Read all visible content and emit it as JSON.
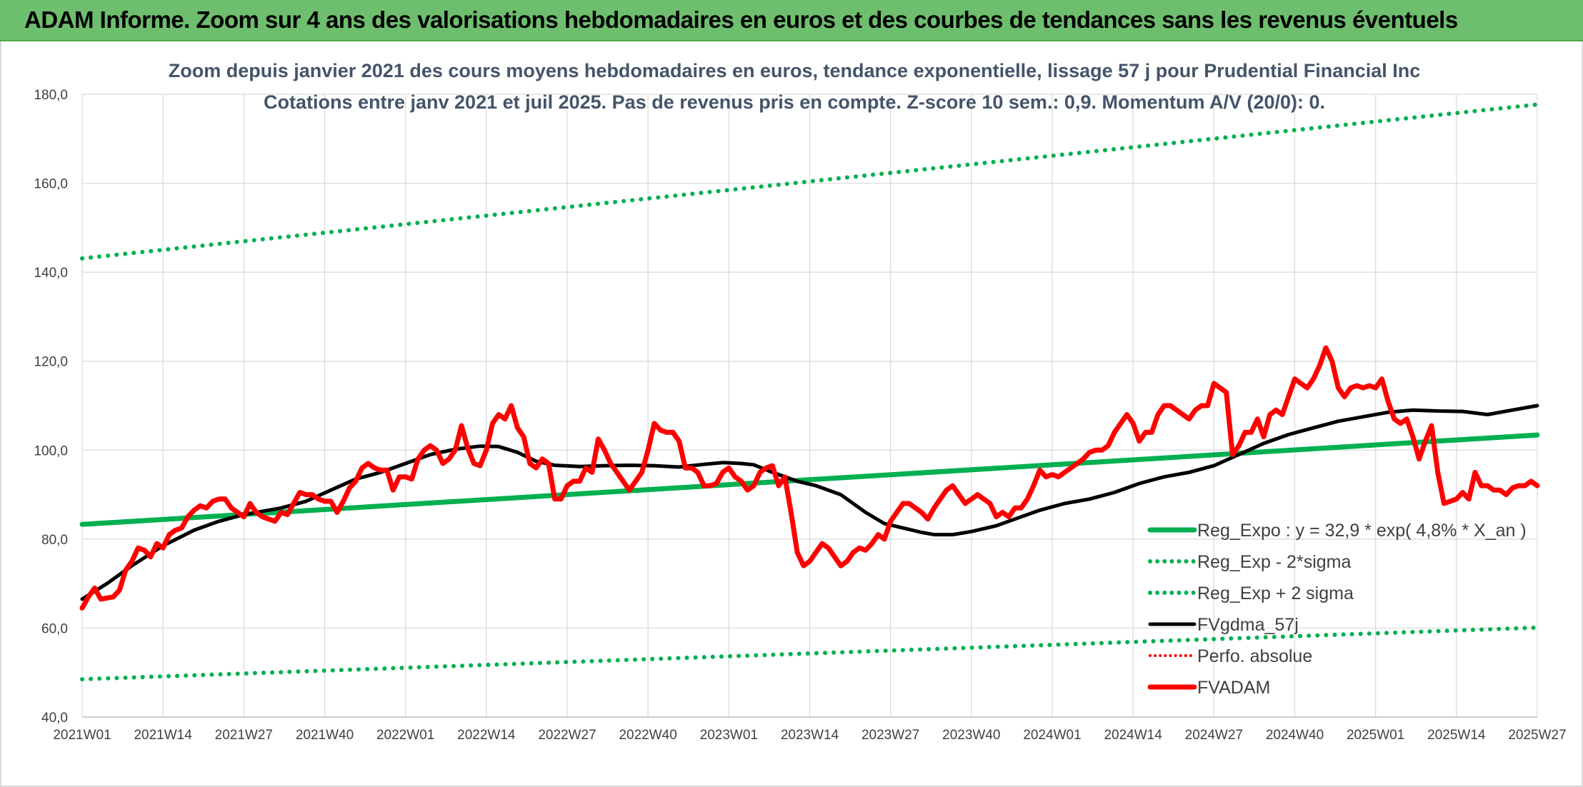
{
  "header": {
    "title": "ADAM Informe. Zoom sur 4 ans des valorisations hebdomadaires en euros et des courbes de tendances sans les revenus éventuels"
  },
  "chart_data": {
    "type": "line",
    "title_line1": "Zoom depuis janvier 2021 des cours moyens hebdomadaires en euros, tendance exponentielle, lissage 57 j pour Prudential Financial Inc",
    "title_line2": "Cotations entre janv 2021 et juil 2025. Pas de revenus pris en compte. Z-score 10 sem.: 0,9. Momentum A/V (20/0): 0.",
    "ylim": [
      40,
      180
    ],
    "y_ticks": [
      "40,0",
      "60,0",
      "80,0",
      "100,0",
      "120,0",
      "140,0",
      "160,0",
      "180,0"
    ],
    "x_ticks": [
      "2021W01",
      "2021W14",
      "2021W27",
      "2021W40",
      "2022W01",
      "2022W14",
      "2022W27",
      "2022W40",
      "2023W01",
      "2023W14",
      "2023W27",
      "2023W40",
      "2024W01",
      "2024W14",
      "2024W27",
      "2024W40",
      "2025W01",
      "2025W14",
      "2025W27"
    ],
    "x_week_range": [
      0,
      234
    ],
    "grid": true,
    "legend_position": "bottom-right",
    "legend": [
      "Reg_Expo : y = 32,9 * exp( 4,8% *  X_an )",
      "Reg_Exp - 2*sigma",
      "Reg_Exp + 2 sigma",
      "FVgdma_57j",
      "Perfo. absolue",
      "FVADAM"
    ],
    "colors": {
      "reg_expo": "#00b050",
      "reg_minus": "#00b050",
      "reg_plus": "#00b050",
      "fvgdma": "#000000",
      "perfo": "#ff0000",
      "fvadam": "#ff0000"
    },
    "series": [
      {
        "name": "Reg_Expo : y = 32,9 * exp( 4,8% *  X_an )",
        "style": "solid",
        "points": [
          [
            0,
            83.3
          ],
          [
            234,
            103.4
          ]
        ]
      },
      {
        "name": "Reg_Exp - 2*sigma",
        "style": "dotted",
        "points": [
          [
            0,
            48.5
          ],
          [
            234,
            60.1
          ]
        ]
      },
      {
        "name": "Reg_Exp + 2 sigma",
        "style": "dotted",
        "points": [
          [
            0,
            143.1
          ],
          [
            234,
            177.7
          ]
        ]
      },
      {
        "name": "FVgdma_57j",
        "style": "solid",
        "points": [
          [
            0,
            66.5
          ],
          [
            4,
            70
          ],
          [
            8,
            74
          ],
          [
            13,
            78.5
          ],
          [
            18,
            82
          ],
          [
            22,
            84
          ],
          [
            26,
            85.5
          ],
          [
            32,
            87
          ],
          [
            36,
            88.5
          ],
          [
            40,
            91
          ],
          [
            44,
            93.5
          ],
          [
            48,
            95
          ],
          [
            52,
            97
          ],
          [
            56,
            99
          ],
          [
            60,
            100.2
          ],
          [
            64,
            100.9
          ],
          [
            67,
            100.8
          ],
          [
            70,
            99.5
          ],
          [
            73,
            97.5
          ],
          [
            76,
            96.6
          ],
          [
            80,
            96.3
          ],
          [
            84,
            96.5
          ],
          [
            88,
            96.6
          ],
          [
            92,
            96.5
          ],
          [
            96,
            96.2
          ],
          [
            100,
            96.8
          ],
          [
            103,
            97.2
          ],
          [
            106,
            97
          ],
          [
            108,
            96.7
          ],
          [
            111,
            95
          ],
          [
            115,
            93
          ],
          [
            118,
            92
          ],
          [
            122,
            90
          ],
          [
            126,
            86
          ],
          [
            129,
            83.5
          ],
          [
            132,
            82.5
          ],
          [
            135,
            81.5
          ],
          [
            137,
            81
          ],
          [
            140,
            81
          ],
          [
            143,
            81.7
          ],
          [
            147,
            83
          ],
          [
            150,
            84.5
          ],
          [
            154,
            86.5
          ],
          [
            158,
            88
          ],
          [
            162,
            89
          ],
          [
            166,
            90.5
          ],
          [
            170,
            92.5
          ],
          [
            174,
            94
          ],
          [
            178,
            95
          ],
          [
            182,
            96.5
          ],
          [
            186,
            99
          ],
          [
            190,
            101.5
          ],
          [
            194,
            103.5
          ],
          [
            198,
            105
          ],
          [
            202,
            106.5
          ],
          [
            206,
            107.5
          ],
          [
            210,
            108.5
          ],
          [
            214,
            109
          ],
          [
            218,
            108.8
          ],
          [
            222,
            108.7
          ],
          [
            226,
            108
          ],
          [
            230,
            109
          ],
          [
            234,
            110
          ]
        ]
      },
      {
        "name": "FVADAM",
        "style": "solid",
        "points": [
          [
            0,
            64.5
          ],
          [
            1,
            67
          ],
          [
            2,
            69
          ],
          [
            3,
            66.5
          ],
          [
            5,
            67
          ],
          [
            6,
            68.5
          ],
          [
            7,
            73
          ],
          [
            8,
            75
          ],
          [
            9,
            78
          ],
          [
            10,
            77.5
          ],
          [
            11,
            76
          ],
          [
            12,
            79
          ],
          [
            13,
            78
          ],
          [
            14,
            81
          ],
          [
            15,
            82
          ],
          [
            16,
            82.5
          ],
          [
            17,
            85
          ],
          [
            18,
            86.5
          ],
          [
            19,
            87.5
          ],
          [
            20,
            87
          ],
          [
            21,
            88.5
          ],
          [
            22,
            89
          ],
          [
            23,
            89
          ],
          [
            24,
            87
          ],
          [
            25,
            86
          ],
          [
            26,
            85
          ],
          [
            27,
            88
          ],
          [
            28,
            86
          ],
          [
            29,
            85
          ],
          [
            30,
            84.5
          ],
          [
            31,
            84
          ],
          [
            32,
            86
          ],
          [
            33,
            85.5
          ],
          [
            34,
            88
          ],
          [
            35,
            90.5
          ],
          [
            36,
            90
          ],
          [
            37,
            90
          ],
          [
            38,
            89
          ],
          [
            39,
            88.5
          ],
          [
            40,
            88.5
          ],
          [
            41,
            86
          ],
          [
            42,
            88.5
          ],
          [
            43,
            91.5
          ],
          [
            44,
            93
          ],
          [
            45,
            96
          ],
          [
            46,
            97
          ],
          [
            47,
            96
          ],
          [
            48,
            95.5
          ],
          [
            49,
            95.5
          ],
          [
            50,
            91
          ],
          [
            51,
            94
          ],
          [
            52,
            94
          ],
          [
            53,
            93.5
          ],
          [
            54,
            98
          ],
          [
            55,
            100
          ],
          [
            56,
            101
          ],
          [
            57,
            100
          ],
          [
            58,
            97
          ],
          [
            59,
            98
          ],
          [
            60,
            100
          ],
          [
            61,
            105.5
          ],
          [
            62,
            100.5
          ],
          [
            63,
            97
          ],
          [
            64,
            96.5
          ],
          [
            65,
            100
          ],
          [
            66,
            106
          ],
          [
            67,
            108
          ],
          [
            68,
            107
          ],
          [
            69,
            110
          ],
          [
            70,
            105
          ],
          [
            71,
            103
          ],
          [
            72,
            97
          ],
          [
            73,
            96
          ],
          [
            74,
            98
          ],
          [
            75,
            97
          ],
          [
            76,
            89
          ],
          [
            77,
            89
          ],
          [
            78,
            92
          ],
          [
            79,
            93
          ],
          [
            80,
            93
          ],
          [
            81,
            96
          ],
          [
            82,
            95
          ],
          [
            83,
            102.5
          ],
          [
            84,
            100
          ],
          [
            85,
            97
          ],
          [
            86,
            95
          ],
          [
            87,
            93
          ],
          [
            88,
            91
          ],
          [
            89,
            93
          ],
          [
            90,
            95
          ],
          [
            91,
            100
          ],
          [
            92,
            106
          ],
          [
            93,
            104.5
          ],
          [
            94,
            104
          ],
          [
            95,
            104
          ],
          [
            96,
            102
          ],
          [
            97,
            96
          ],
          [
            98,
            96
          ],
          [
            99,
            95
          ],
          [
            100,
            92
          ],
          [
            101,
            92
          ],
          [
            102,
            92.5
          ],
          [
            103,
            95
          ],
          [
            104,
            96
          ],
          [
            105,
            94
          ],
          [
            106,
            93
          ],
          [
            107,
            91
          ],
          [
            108,
            92
          ],
          [
            109,
            95
          ],
          [
            110,
            96
          ],
          [
            111,
            96.5
          ],
          [
            112,
            92
          ],
          [
            113,
            94
          ],
          [
            114,
            86
          ],
          [
            115,
            77
          ],
          [
            116,
            74
          ],
          [
            117,
            75
          ],
          [
            118,
            77
          ],
          [
            119,
            79
          ],
          [
            120,
            78
          ],
          [
            121,
            76
          ],
          [
            122,
            74
          ],
          [
            123,
            75
          ],
          [
            124,
            77
          ],
          [
            125,
            78
          ],
          [
            126,
            77.5
          ],
          [
            127,
            79
          ],
          [
            128,
            81
          ],
          [
            129,
            80
          ],
          [
            130,
            84
          ],
          [
            131,
            86
          ],
          [
            132,
            88
          ],
          [
            133,
            88
          ],
          [
            134,
            87
          ],
          [
            135,
            86
          ],
          [
            136,
            84.5
          ],
          [
            137,
            87
          ],
          [
            138,
            89
          ],
          [
            139,
            91
          ],
          [
            140,
            92
          ],
          [
            141,
            90
          ],
          [
            142,
            88
          ],
          [
            143,
            89
          ],
          [
            144,
            90
          ],
          [
            145,
            89
          ],
          [
            146,
            88
          ],
          [
            147,
            85
          ],
          [
            148,
            86
          ],
          [
            149,
            85
          ],
          [
            150,
            87
          ],
          [
            151,
            87
          ],
          [
            152,
            89
          ],
          [
            153,
            92
          ],
          [
            154,
            95.5
          ],
          [
            155,
            94
          ],
          [
            156,
            94.5
          ],
          [
            157,
            94
          ],
          [
            158,
            95
          ],
          [
            159,
            96
          ],
          [
            160,
            97
          ],
          [
            161,
            98
          ],
          [
            162,
            99.5
          ],
          [
            163,
            100
          ],
          [
            164,
            100
          ],
          [
            165,
            101
          ],
          [
            166,
            104
          ],
          [
            167,
            106
          ],
          [
            168,
            108
          ],
          [
            169,
            106
          ],
          [
            170,
            102
          ],
          [
            171,
            104
          ],
          [
            172,
            104
          ],
          [
            173,
            108
          ],
          [
            174,
            110
          ],
          [
            175,
            110
          ],
          [
            176,
            109
          ],
          [
            177,
            108
          ],
          [
            178,
            107
          ],
          [
            179,
            109
          ],
          [
            180,
            110
          ],
          [
            181,
            110
          ],
          [
            182,
            115
          ],
          [
            183,
            114
          ],
          [
            184,
            113
          ],
          [
            185,
            99
          ],
          [
            186,
            101
          ],
          [
            187,
            104
          ],
          [
            188,
            104
          ],
          [
            189,
            107
          ],
          [
            190,
            103
          ],
          [
            191,
            108
          ],
          [
            192,
            109
          ],
          [
            193,
            108
          ],
          [
            194,
            112
          ],
          [
            195,
            116
          ],
          [
            196,
            115
          ],
          [
            197,
            114
          ],
          [
            198,
            116
          ],
          [
            199,
            119
          ],
          [
            200,
            123
          ],
          [
            201,
            120
          ],
          [
            202,
            114
          ],
          [
            203,
            112
          ],
          [
            204,
            114
          ],
          [
            205,
            114.5
          ],
          [
            206,
            114
          ],
          [
            207,
            114.5
          ],
          [
            208,
            114
          ],
          [
            209,
            116
          ],
          [
            210,
            111
          ],
          [
            211,
            107
          ],
          [
            212,
            106
          ],
          [
            213,
            107
          ],
          [
            214,
            103
          ],
          [
            215,
            98
          ],
          [
            216,
            102
          ],
          [
            217,
            105.5
          ],
          [
            218,
            95
          ],
          [
            219,
            88
          ],
          [
            220,
            88.5
          ],
          [
            221,
            89
          ],
          [
            222,
            90.5
          ],
          [
            223,
            89
          ],
          [
            224,
            95
          ],
          [
            225,
            92
          ],
          [
            226,
            92
          ],
          [
            227,
            91
          ],
          [
            228,
            91
          ],
          [
            229,
            90
          ],
          [
            230,
            91.5
          ],
          [
            231,
            92
          ],
          [
            232,
            92
          ],
          [
            233,
            93
          ],
          [
            234,
            92
          ]
        ]
      }
    ]
  }
}
